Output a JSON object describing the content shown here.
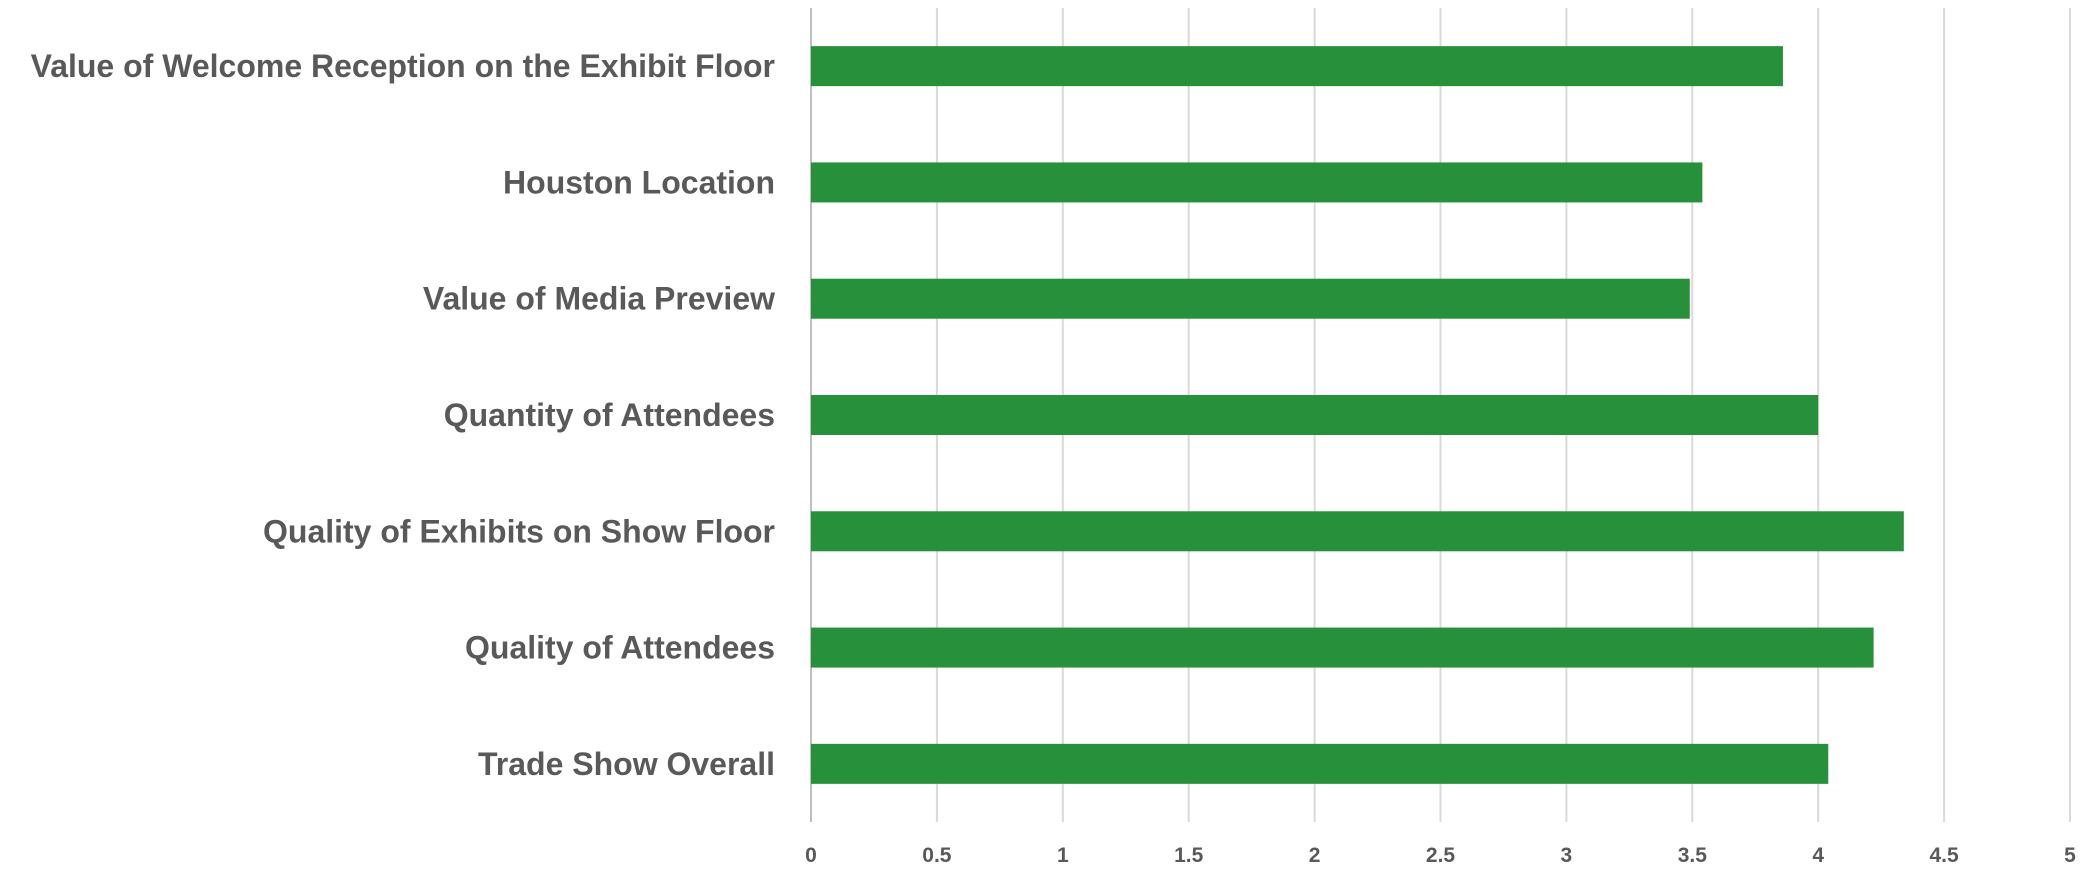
{
  "chart_data": {
    "type": "bar",
    "orientation": "horizontal",
    "title": "",
    "xlabel": "",
    "ylabel": "",
    "categories": [
      "Value of Welcome Reception on the Exhibit Floor",
      "Houston Location",
      "Value of Media Preview",
      "Quantity of Attendees",
      "Quality of Exhibits on Show Floor",
      "Quality of Attendees",
      "Trade Show Overall"
    ],
    "values": [
      3.86,
      3.54,
      3.49,
      4.0,
      4.34,
      4.22,
      4.04
    ],
    "xlim": [
      0,
      5
    ],
    "xticks": [
      "0",
      "0.5",
      "1",
      "1.5",
      "2",
      "2.5",
      "3",
      "3.5",
      "4",
      "4.5",
      "5"
    ],
    "grid": true,
    "legend": "none",
    "bar_color": "#27903a"
  }
}
